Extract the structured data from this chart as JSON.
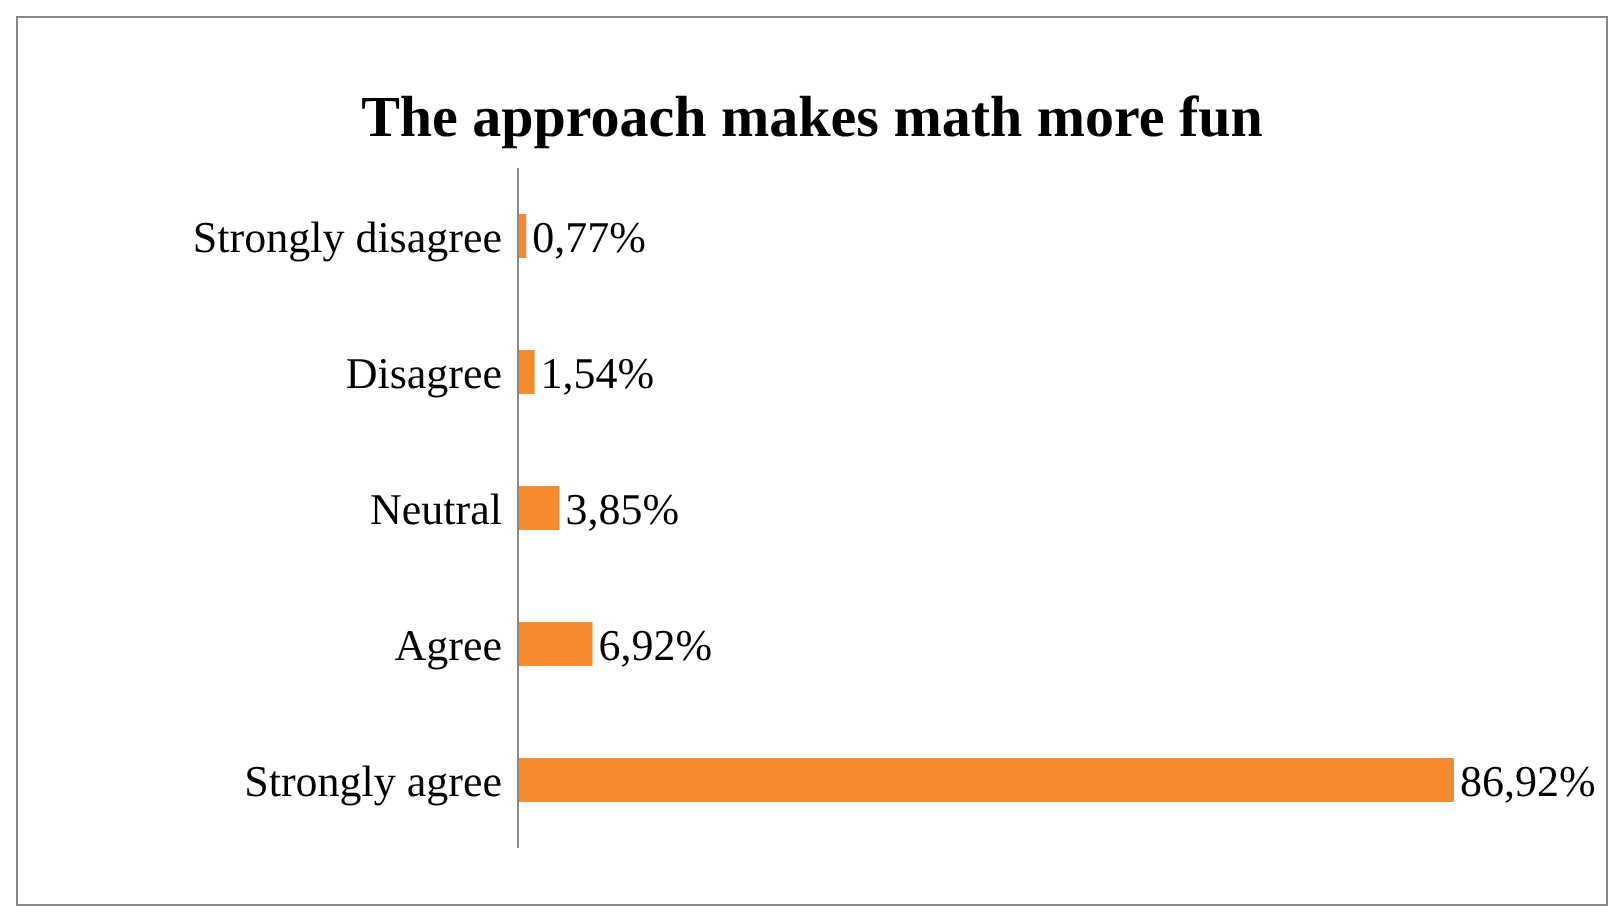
{
  "chart_data": {
    "type": "bar",
    "orientation": "horizontal",
    "title": "The approach makes math more fun",
    "categories": [
      "Strongly disagree",
      "Disagree",
      "Neutral",
      "Agree",
      "Strongly agree"
    ],
    "values": [
      0.77,
      1.54,
      3.85,
      6.92,
      86.92
    ],
    "value_labels": [
      "0,77%",
      "1,54%",
      "3,85%",
      "6,92%",
      "86,92%"
    ],
    "color": "#f68a2e"
  }
}
